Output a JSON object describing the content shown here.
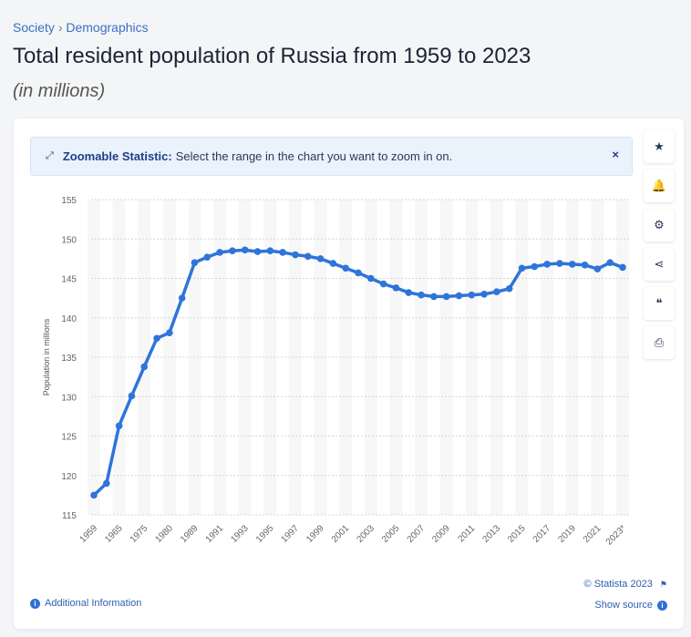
{
  "breadcrumb": {
    "items": [
      "Society",
      "Demographics"
    ],
    "separator": "›"
  },
  "header": {
    "title": "Total resident population of Russia from 1959 to 2023",
    "subtitle": "(in millions)"
  },
  "banner": {
    "icon": "expand-icon",
    "label": "Zoomable Statistic:",
    "text": "Select the range in the chart you want to zoom in on.",
    "close": "×"
  },
  "sidebar": [
    {
      "icon": "star-icon",
      "glyph": "★"
    },
    {
      "icon": "bell-icon",
      "glyph": "🔔"
    },
    {
      "icon": "gear-icon",
      "glyph": "⚙"
    },
    {
      "icon": "share-icon",
      "glyph": "⋖"
    },
    {
      "icon": "quote-icon",
      "glyph": "❝"
    },
    {
      "icon": "print-icon",
      "glyph": "⎙"
    }
  ],
  "footer": {
    "additional_info": "Additional Information",
    "copyright": "© Statista 2023",
    "show_source": "Show source"
  },
  "colors": {
    "line": "#2f74d8",
    "accent": "#1f3f86",
    "link": "#2f5fb0"
  },
  "chart_data": {
    "type": "line",
    "ylabel": "Population in millions",
    "ylim": [
      115,
      155
    ],
    "yticks": [
      115,
      120,
      125,
      130,
      135,
      140,
      145,
      150,
      155
    ],
    "grid": true,
    "categories": [
      "1959",
      "1960",
      "1965",
      "1970",
      "1975",
      "1979",
      "1980",
      "1985",
      "1989",
      "1990",
      "1991",
      "1992",
      "1993",
      "1994",
      "1995",
      "1996",
      "1997",
      "1998",
      "1999",
      "2000",
      "2001",
      "2002",
      "2003",
      "2004",
      "2005",
      "2006",
      "2007",
      "2008",
      "2009",
      "2010",
      "2011",
      "2012",
      "2013",
      "2014",
      "2015",
      "2016",
      "2017",
      "2018",
      "2019",
      "2020",
      "2021",
      "2022",
      "2023*"
    ],
    "tick_labels": [
      "1959",
      "1965",
      "1975",
      "1980",
      "1989",
      "1991",
      "1993",
      "1995",
      "1997",
      "1999",
      "2001",
      "2003",
      "2005",
      "2007",
      "2009",
      "2011",
      "2013",
      "2015",
      "2017",
      "2019",
      "2021",
      "2023*"
    ],
    "values": [
      117.5,
      119.0,
      126.3,
      130.1,
      133.8,
      137.4,
      138.1,
      142.5,
      147.0,
      147.7,
      148.3,
      148.5,
      148.6,
      148.4,
      148.5,
      148.3,
      148.0,
      147.8,
      147.5,
      146.9,
      146.3,
      145.7,
      145.0,
      144.3,
      143.8,
      143.2,
      142.9,
      142.7,
      142.7,
      142.8,
      142.9,
      143.0,
      143.3,
      143.7,
      146.3,
      146.5,
      146.8,
      146.9,
      146.8,
      146.7,
      146.2,
      147.0,
      146.4
    ]
  }
}
